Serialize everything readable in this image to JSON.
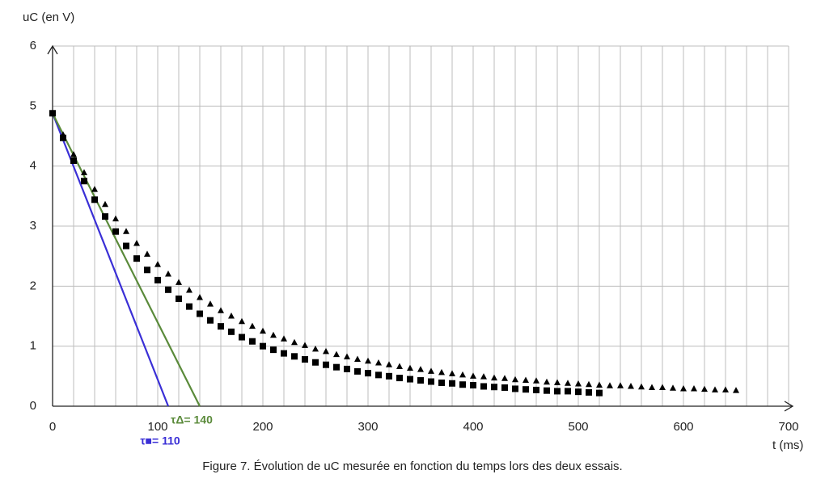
{
  "chart_data": {
    "type": "scatter",
    "y_label": "uC (en V)",
    "x_label": "t (ms)",
    "caption": "Figure 7. Évolution de uC mesurée en fonction du temps lors des deux essais.",
    "xlim": [
      0,
      700
    ],
    "ylim": [
      0,
      6
    ],
    "xticks": [
      0,
      100,
      200,
      300,
      400,
      500,
      600,
      700
    ],
    "yticks": [
      0,
      1,
      2,
      3,
      4,
      5,
      6
    ],
    "grid": true,
    "x_grid_step": 20,
    "series": [
      {
        "marker": "square",
        "color": "#000000",
        "x": [
          0,
          10,
          20,
          30,
          40,
          50,
          60,
          70,
          80,
          90,
          100,
          110,
          120,
          130,
          140,
          150,
          160,
          170,
          180,
          190,
          200,
          210,
          220,
          230,
          240,
          250,
          260,
          270,
          280,
          290,
          300,
          310,
          320,
          330,
          340,
          350,
          360,
          370,
          380,
          390,
          400,
          410,
          420,
          430,
          440,
          450,
          460,
          470,
          480,
          490,
          500,
          510,
          520
        ],
        "values": [
          4.88,
          4.47,
          4.09,
          3.75,
          3.44,
          3.16,
          2.91,
          2.67,
          2.46,
          2.27,
          2.1,
          1.94,
          1.79,
          1.66,
          1.54,
          1.43,
          1.33,
          1.24,
          1.15,
          1.08,
          1.0,
          0.94,
          0.88,
          0.83,
          0.78,
          0.73,
          0.69,
          0.65,
          0.62,
          0.58,
          0.55,
          0.52,
          0.5,
          0.47,
          0.45,
          0.43,
          0.41,
          0.39,
          0.38,
          0.36,
          0.35,
          0.33,
          0.32,
          0.31,
          0.29,
          0.28,
          0.27,
          0.26,
          0.25,
          0.25,
          0.24,
          0.23,
          0.22
        ]
      },
      {
        "marker": "triangle",
        "color": "#000000",
        "x": [
          0,
          10,
          20,
          30,
          40,
          50,
          60,
          70,
          80,
          90,
          100,
          110,
          120,
          130,
          140,
          150,
          160,
          170,
          180,
          190,
          200,
          210,
          220,
          230,
          240,
          250,
          260,
          270,
          280,
          290,
          300,
          310,
          320,
          330,
          340,
          350,
          360,
          370,
          380,
          390,
          400,
          410,
          420,
          430,
          440,
          450,
          460,
          470,
          480,
          490,
          500,
          510,
          520,
          530,
          540,
          550,
          560,
          570,
          580,
          590,
          600,
          610,
          620,
          630,
          640,
          650
        ],
        "values": [
          4.88,
          4.52,
          4.19,
          3.89,
          3.61,
          3.36,
          3.12,
          2.91,
          2.71,
          2.53,
          2.36,
          2.2,
          2.06,
          1.93,
          1.81,
          1.7,
          1.59,
          1.5,
          1.41,
          1.33,
          1.25,
          1.18,
          1.12,
          1.06,
          1.01,
          0.95,
          0.91,
          0.86,
          0.82,
          0.78,
          0.75,
          0.72,
          0.69,
          0.66,
          0.63,
          0.61,
          0.58,
          0.56,
          0.54,
          0.52,
          0.5,
          0.49,
          0.47,
          0.46,
          0.44,
          0.43,
          0.42,
          0.4,
          0.39,
          0.38,
          0.37,
          0.36,
          0.35,
          0.34,
          0.34,
          0.33,
          0.32,
          0.31,
          0.31,
          0.3,
          0.29,
          0.29,
          0.28,
          0.27,
          0.27,
          0.26
        ]
      }
    ],
    "lines": [
      {
        "name": "τ■= 110",
        "color": "#3a2fd6",
        "x": [
          0,
          110
        ],
        "values": [
          4.88,
          0
        ]
      },
      {
        "name": "τΔ= 140",
        "color": "#5a8a3a",
        "x": [
          0,
          140
        ],
        "values": [
          4.88,
          0
        ]
      }
    ]
  }
}
